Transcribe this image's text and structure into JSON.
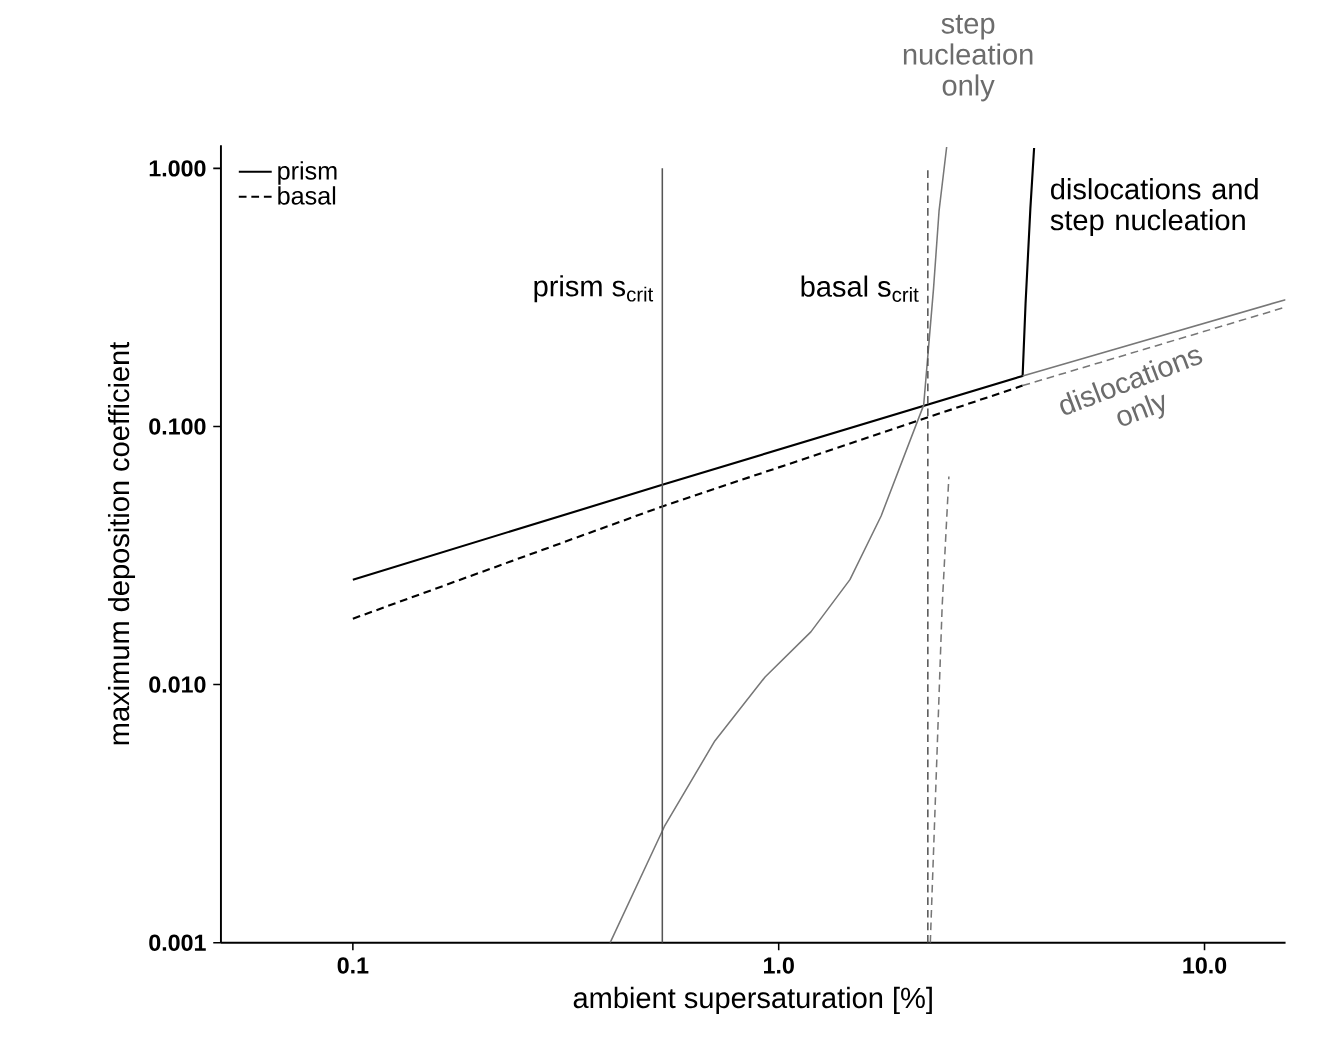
{
  "chart_data": {
    "type": "line",
    "xlabel": "ambient supersaturation [%]",
    "ylabel": "maximum deposition coefficient",
    "log": "xy",
    "xlim": [
      0.049,
      15.5
    ],
    "ylim": [
      0.001,
      1.23
    ],
    "xticks": [
      {
        "value": 0.1,
        "label": "0.1"
      },
      {
        "value": 1,
        "label": "1.0"
      },
      {
        "value": 10,
        "label": "10.0"
      }
    ],
    "yticks": [
      {
        "value": 0.001,
        "label": "0.001"
      },
      {
        "value": 0.01,
        "label": "0.010"
      },
      {
        "value": 0.1,
        "label": "0.100"
      },
      {
        "value": 1,
        "label": "1.000"
      }
    ],
    "legend": "top left",
    "series": [
      {
        "name": "prism",
        "color": "#000000",
        "line_style": "solid",
        "x": [
          0.1,
          0.533,
          3.74,
          3.8,
          3.9,
          3.98
        ],
        "values": [
          0.0255,
          0.0594,
          0.157,
          0.3,
          0.7,
          1.2
        ]
      },
      {
        "name": "basal",
        "color": "#000000",
        "line_style": "dashed",
        "x": [
          0.1,
          0.533,
          3.74
        ],
        "values": [
          0.018,
          0.049,
          0.144
        ]
      },
      {
        "color": "#777777",
        "line_style": "solid",
        "x": [
          3.74,
          15.5
        ],
        "values": [
          0.157,
          0.31
        ]
      },
      {
        "color": "#777777",
        "line_style": "dashed",
        "x": [
          3.74,
          15.5
        ],
        "values": [
          0.144,
          0.29
        ]
      },
      {
        "color": "#777777",
        "line_style": "solid",
        "x": [
          0.402,
          0.539,
          0.708,
          0.929,
          1.19,
          1.47,
          1.74,
          2.19,
          2.31,
          2.38,
          2.48
        ],
        "values": [
          0.001,
          0.00282,
          0.00605,
          0.0107,
          0.016,
          0.0255,
          0.045,
          0.121,
          0.342,
          0.684,
          1.21
        ]
      },
      {
        "color": "#777777",
        "line_style": "dashed",
        "x": [
          2.27,
          2.35,
          2.42,
          2.51
        ],
        "values": [
          0.001,
          0.005,
          0.02,
          0.064
        ]
      }
    ],
    "ref_lines": [
      {
        "axis": "x",
        "value": 0.533,
        "label": "prism s$_{crit}$",
        "color": "#555555",
        "line_style": "solid"
      },
      {
        "axis": "x",
        "value": 2.24,
        "label": "basal s$_{crit}$",
        "color": "#555555",
        "line_style": "dashed"
      }
    ],
    "annotations": [
      "step nucleation only",
      "dislocations and step nucleation",
      "dislocations only"
    ]
  }
}
